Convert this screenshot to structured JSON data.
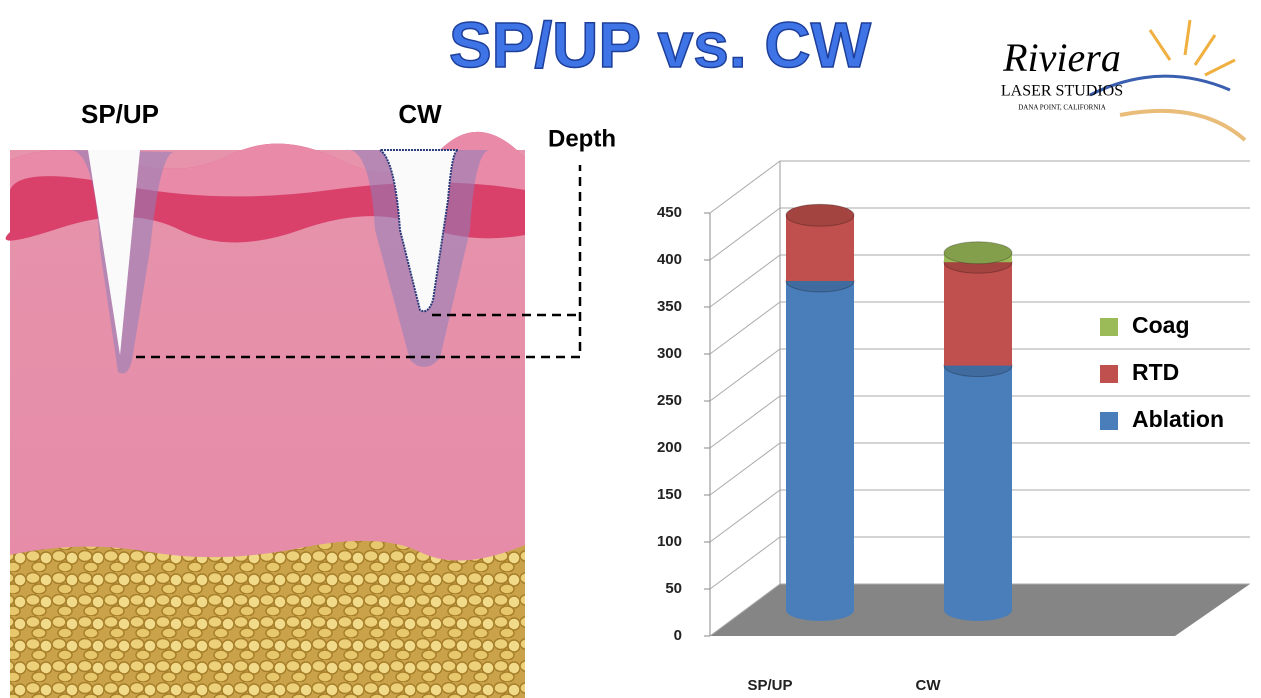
{
  "chart_data": {
    "type": "bar",
    "title": "SP/UP vs. CW",
    "categories": [
      "SP/UP",
      "CW"
    ],
    "series": [
      {
        "name": "Ablation",
        "color": "#4a7ebb",
        "values": [
          350,
          260
        ]
      },
      {
        "name": "RTD",
        "color": "#c0504d",
        "values": [
          70,
          110
        ]
      },
      {
        "name": "Coag",
        "color": "#9bbb59",
        "values": [
          0,
          10
        ]
      }
    ],
    "ylim": [
      0,
      450
    ],
    "yticks": [
      0,
      50,
      100,
      150,
      200,
      250,
      300,
      350,
      400,
      450
    ],
    "grid": true,
    "stacked": true,
    "legend": "right"
  },
  "illustration": {
    "labels": [
      "SP/UP",
      "CW"
    ],
    "depth_label": "Depth"
  },
  "logo": {
    "name": "Riviera",
    "subtitle": "LASER STUDIOS",
    "location": "DANA POINT, CALIFORNIA"
  }
}
